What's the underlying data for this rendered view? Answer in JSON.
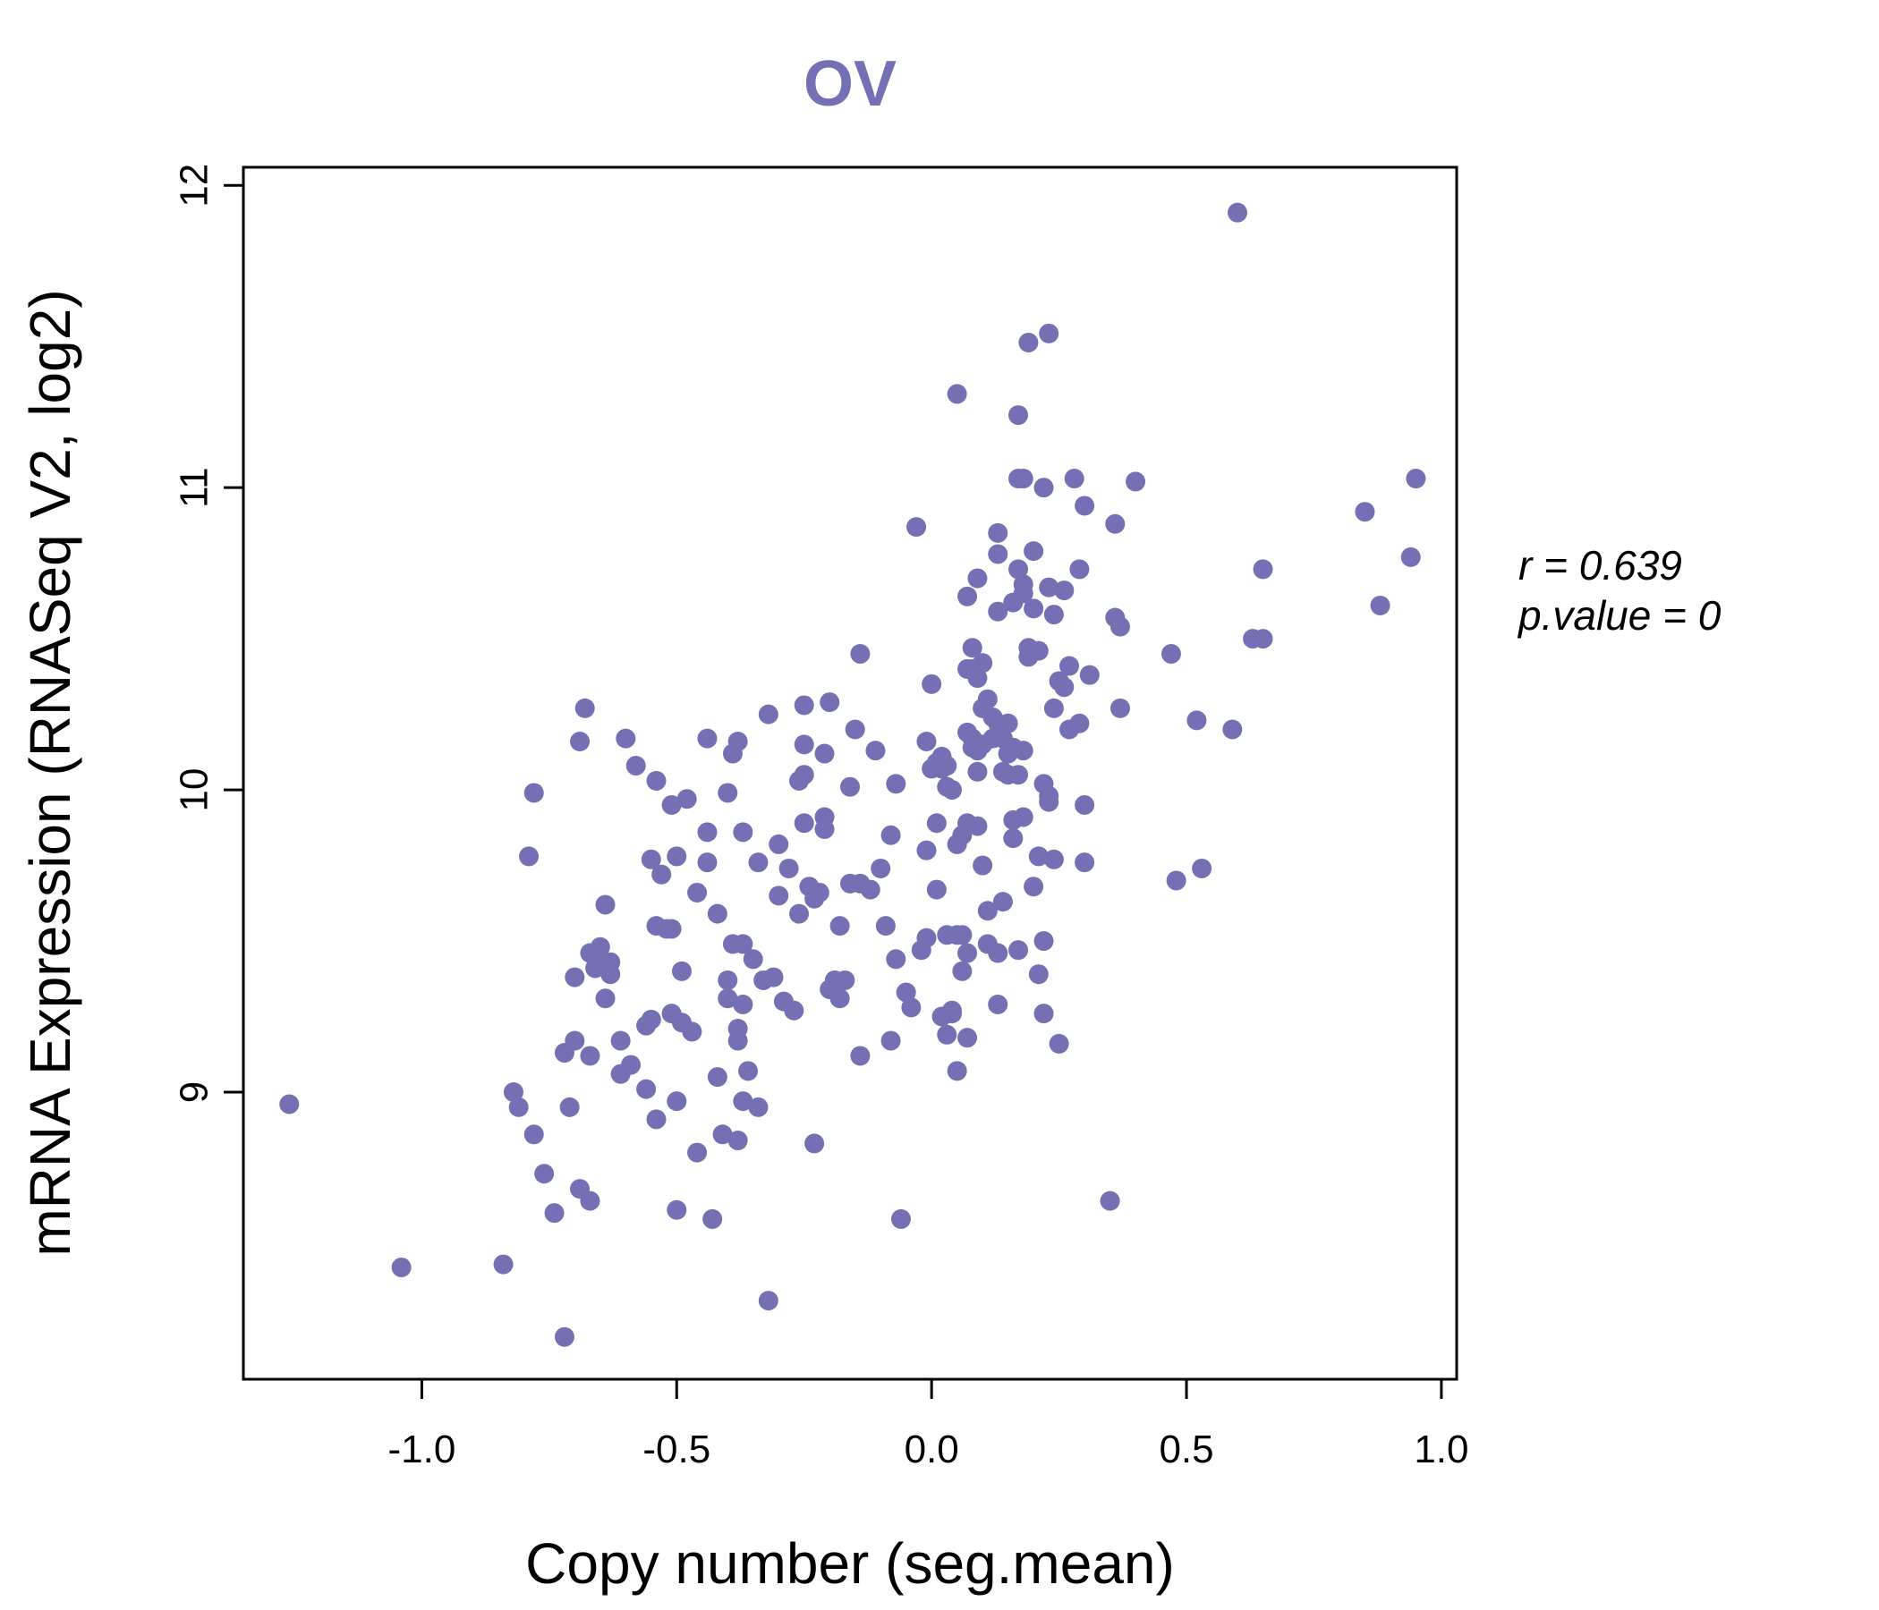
{
  "colors": {
    "point": "#7570b3",
    "title": "#7570b3",
    "axis": "#000000"
  },
  "chart_data": {
    "type": "scatter",
    "title": "OV",
    "xlabel": "Copy number (seg.mean)",
    "ylabel": "mRNA Expression (RNASeq V2, log2)",
    "xlim": [
      -1.35,
      1.03
    ],
    "ylim": [
      8.05,
      12.06
    ],
    "x_ticks": [
      -1.0,
      -0.5,
      0.0,
      0.5,
      1.0
    ],
    "x_tick_labels": [
      "-1.0",
      "-0.5",
      "0.0",
      "0.5",
      "1.0"
    ],
    "y_ticks": [
      9,
      10,
      11,
      12
    ],
    "y_tick_labels": [
      "9",
      "10",
      "11",
      "12"
    ],
    "grid": false,
    "stats": {
      "r_label": "r = 0.639",
      "p_label": "p.value = 0"
    },
    "points": [
      [
        -1.26,
        8.96
      ],
      [
        -1.04,
        8.42
      ],
      [
        -0.84,
        8.43
      ],
      [
        -0.82,
        9.0
      ],
      [
        -0.81,
        8.95
      ],
      [
        -0.79,
        9.78
      ],
      [
        -0.78,
        9.99
      ],
      [
        -0.78,
        8.86
      ],
      [
        -0.76,
        8.73
      ],
      [
        -0.74,
        8.6
      ],
      [
        -0.72,
        8.19
      ],
      [
        -0.72,
        9.13
      ],
      [
        -0.71,
        8.95
      ],
      [
        -0.7,
        9.38
      ],
      [
        -0.7,
        9.17
      ],
      [
        -0.69,
        8.68
      ],
      [
        -0.69,
        10.16
      ],
      [
        -0.68,
        10.27
      ],
      [
        -0.67,
        8.64
      ],
      [
        -0.67,
        9.46
      ],
      [
        -0.67,
        9.12
      ],
      [
        -0.66,
        9.41
      ],
      [
        -0.65,
        9.48
      ],
      [
        -0.65,
        9.43
      ],
      [
        -0.64,
        9.62
      ],
      [
        -0.64,
        9.31
      ],
      [
        -0.63,
        9.43
      ],
      [
        -0.63,
        9.39
      ],
      [
        -0.61,
        9.17
      ],
      [
        -0.61,
        9.06
      ],
      [
        -0.6,
        10.17
      ],
      [
        -0.59,
        9.09
      ],
      [
        -0.58,
        10.08
      ],
      [
        -0.56,
        9.22
      ],
      [
        -0.56,
        9.01
      ],
      [
        -0.55,
        9.77
      ],
      [
        -0.55,
        9.24
      ],
      [
        -0.54,
        10.03
      ],
      [
        -0.54,
        9.55
      ],
      [
        -0.54,
        8.91
      ],
      [
        -0.53,
        9.72
      ],
      [
        -0.52,
        9.54
      ],
      [
        -0.51,
        9.95
      ],
      [
        -0.51,
        9.54
      ],
      [
        -0.51,
        9.26
      ],
      [
        -0.5,
        9.78
      ],
      [
        -0.5,
        8.97
      ],
      [
        -0.5,
        8.61
      ],
      [
        -0.49,
        9.4
      ],
      [
        -0.49,
        9.23
      ],
      [
        -0.48,
        9.97
      ],
      [
        -0.47,
        9.2
      ],
      [
        -0.46,
        9.66
      ],
      [
        -0.46,
        8.8
      ],
      [
        -0.44,
        10.17
      ],
      [
        -0.44,
        9.86
      ],
      [
        -0.44,
        9.76
      ],
      [
        -0.43,
        8.58
      ],
      [
        -0.42,
        9.59
      ],
      [
        -0.42,
        9.05
      ],
      [
        -0.41,
        8.86
      ],
      [
        -0.4,
        9.99
      ],
      [
        -0.4,
        9.37
      ],
      [
        -0.4,
        9.31
      ],
      [
        -0.39,
        10.12
      ],
      [
        -0.39,
        9.49
      ],
      [
        -0.38,
        10.16
      ],
      [
        -0.38,
        9.21
      ],
      [
        -0.38,
        9.17
      ],
      [
        -0.38,
        8.84
      ],
      [
        -0.37,
        9.86
      ],
      [
        -0.37,
        9.49
      ],
      [
        -0.37,
        9.29
      ],
      [
        -0.37,
        8.97
      ],
      [
        -0.36,
        9.07
      ],
      [
        -0.35,
        9.44
      ],
      [
        -0.34,
        9.76
      ],
      [
        -0.34,
        8.95
      ],
      [
        -0.33,
        9.37
      ],
      [
        -0.32,
        10.25
      ],
      [
        -0.32,
        8.31
      ],
      [
        -0.31,
        9.38
      ],
      [
        -0.3,
        9.82
      ],
      [
        -0.3,
        9.65
      ],
      [
        -0.29,
        9.3
      ],
      [
        -0.28,
        9.74
      ],
      [
        -0.27,
        9.27
      ],
      [
        -0.26,
        10.03
      ],
      [
        -0.26,
        9.59
      ],
      [
        -0.25,
        10.15
      ],
      [
        -0.25,
        10.05
      ],
      [
        -0.25,
        9.89
      ],
      [
        -0.25,
        10.28
      ],
      [
        -0.24,
        9.68
      ],
      [
        -0.23,
        9.64
      ],
      [
        -0.23,
        8.83
      ],
      [
        -0.22,
        9.66
      ],
      [
        -0.21,
        10.12
      ],
      [
        -0.21,
        9.91
      ],
      [
        -0.21,
        9.87
      ],
      [
        -0.2,
        10.29
      ],
      [
        -0.2,
        9.34
      ],
      [
        -0.19,
        9.37
      ],
      [
        -0.18,
        9.55
      ],
      [
        -0.18,
        9.31
      ],
      [
        -0.17,
        9.37
      ],
      [
        -0.16,
        9.69
      ],
      [
        -0.16,
        10.01
      ],
      [
        -0.15,
        10.2
      ],
      [
        -0.14,
        9.69
      ],
      [
        -0.14,
        9.12
      ],
      [
        -0.14,
        10.45
      ],
      [
        -0.12,
        9.67
      ],
      [
        -0.11,
        10.13
      ],
      [
        -0.1,
        9.74
      ],
      [
        -0.09,
        9.55
      ],
      [
        -0.08,
        9.85
      ],
      [
        -0.08,
        9.17
      ],
      [
        -0.07,
        10.02
      ],
      [
        -0.07,
        9.44
      ],
      [
        -0.06,
        8.58
      ],
      [
        -0.05,
        9.33
      ],
      [
        -0.04,
        9.28
      ],
      [
        -0.03,
        10.87
      ],
      [
        -0.02,
        9.47
      ],
      [
        -0.01,
        10.16
      ],
      [
        -0.01,
        9.8
      ],
      [
        -0.01,
        9.51
      ],
      [
        0.0,
        10.07
      ],
      [
        0.0,
        10.35
      ],
      [
        0.01,
        10.09
      ],
      [
        0.01,
        9.67
      ],
      [
        0.01,
        9.89
      ],
      [
        0.02,
        10.09
      ],
      [
        0.02,
        10.1
      ],
      [
        0.02,
        10.11
      ],
      [
        0.02,
        10.07
      ],
      [
        0.02,
        9.25
      ],
      [
        0.03,
        9.52
      ],
      [
        0.03,
        10.01
      ],
      [
        0.03,
        10.08
      ],
      [
        0.03,
        9.19
      ],
      [
        0.04,
        10.0
      ],
      [
        0.04,
        9.27
      ],
      [
        0.04,
        9.26
      ],
      [
        0.05,
        9.82
      ],
      [
        0.05,
        9.52
      ],
      [
        0.05,
        9.07
      ],
      [
        0.05,
        11.31
      ],
      [
        0.06,
        9.52
      ],
      [
        0.06,
        9.85
      ],
      [
        0.06,
        9.4
      ],
      [
        0.07,
        10.64
      ],
      [
        0.07,
        10.4
      ],
      [
        0.07,
        10.19
      ],
      [
        0.07,
        9.89
      ],
      [
        0.07,
        9.46
      ],
      [
        0.07,
        9.18
      ],
      [
        0.08,
        10.47
      ],
      [
        0.08,
        10.4
      ],
      [
        0.08,
        10.17
      ],
      [
        0.08,
        10.14
      ],
      [
        0.09,
        10.7
      ],
      [
        0.09,
        10.37
      ],
      [
        0.09,
        10.13
      ],
      [
        0.09,
        10.06
      ],
      [
        0.09,
        9.88
      ],
      [
        0.1,
        10.42
      ],
      [
        0.1,
        10.27
      ],
      [
        0.1,
        10.15
      ],
      [
        0.1,
        9.75
      ],
      [
        0.11,
        10.3
      ],
      [
        0.11,
        9.6
      ],
      [
        0.11,
        9.49
      ],
      [
        0.12,
        10.24
      ],
      [
        0.12,
        10.17
      ],
      [
        0.13,
        10.85
      ],
      [
        0.13,
        10.78
      ],
      [
        0.13,
        10.59
      ],
      [
        0.13,
        10.22
      ],
      [
        0.13,
        9.46
      ],
      [
        0.13,
        9.29
      ],
      [
        0.14,
        10.17
      ],
      [
        0.14,
        10.06
      ],
      [
        0.14,
        9.63
      ],
      [
        0.15,
        10.22
      ],
      [
        0.15,
        10.12
      ],
      [
        0.15,
        10.05
      ],
      [
        0.16,
        10.62
      ],
      [
        0.16,
        10.14
      ],
      [
        0.16,
        9.9
      ],
      [
        0.16,
        9.84
      ],
      [
        0.17,
        11.24
      ],
      [
        0.17,
        11.03
      ],
      [
        0.17,
        10.73
      ],
      [
        0.17,
        10.05
      ],
      [
        0.17,
        9.47
      ],
      [
        0.18,
        11.03
      ],
      [
        0.18,
        10.68
      ],
      [
        0.18,
        10.65
      ],
      [
        0.18,
        10.13
      ],
      [
        0.18,
        9.91
      ],
      [
        0.19,
        11.48
      ],
      [
        0.19,
        10.47
      ],
      [
        0.19,
        10.44
      ],
      [
        0.2,
        10.79
      ],
      [
        0.2,
        10.6
      ],
      [
        0.2,
        9.68
      ],
      [
        0.21,
        10.46
      ],
      [
        0.21,
        9.39
      ],
      [
        0.21,
        9.78
      ],
      [
        0.22,
        11.0
      ],
      [
        0.22,
        10.02
      ],
      [
        0.22,
        9.5
      ],
      [
        0.22,
        9.26
      ],
      [
        0.23,
        11.51
      ],
      [
        0.23,
        10.67
      ],
      [
        0.23,
        9.98
      ],
      [
        0.23,
        9.96
      ],
      [
        0.24,
        10.58
      ],
      [
        0.24,
        10.27
      ],
      [
        0.24,
        9.77
      ],
      [
        0.25,
        10.36
      ],
      [
        0.25,
        9.16
      ],
      [
        0.26,
        10.66
      ],
      [
        0.26,
        10.34
      ],
      [
        0.27,
        10.41
      ],
      [
        0.27,
        10.2
      ],
      [
        0.28,
        11.03
      ],
      [
        0.29,
        10.73
      ],
      [
        0.29,
        10.22
      ],
      [
        0.3,
        9.95
      ],
      [
        0.3,
        9.76
      ],
      [
        0.3,
        10.94
      ],
      [
        0.31,
        10.38
      ],
      [
        0.35,
        8.64
      ],
      [
        0.36,
        10.88
      ],
      [
        0.36,
        10.57
      ],
      [
        0.37,
        10.27
      ],
      [
        0.37,
        10.54
      ],
      [
        0.4,
        11.02
      ],
      [
        0.47,
        10.45
      ],
      [
        0.48,
        9.7
      ],
      [
        0.52,
        10.23
      ],
      [
        0.53,
        9.74
      ],
      [
        0.59,
        10.2
      ],
      [
        0.6,
        11.91
      ],
      [
        0.63,
        10.5
      ],
      [
        0.65,
        10.5
      ],
      [
        0.65,
        10.73
      ],
      [
        0.85,
        10.92
      ],
      [
        0.88,
        10.61
      ],
      [
        0.94,
        10.77
      ],
      [
        0.95,
        11.03
      ]
    ]
  }
}
